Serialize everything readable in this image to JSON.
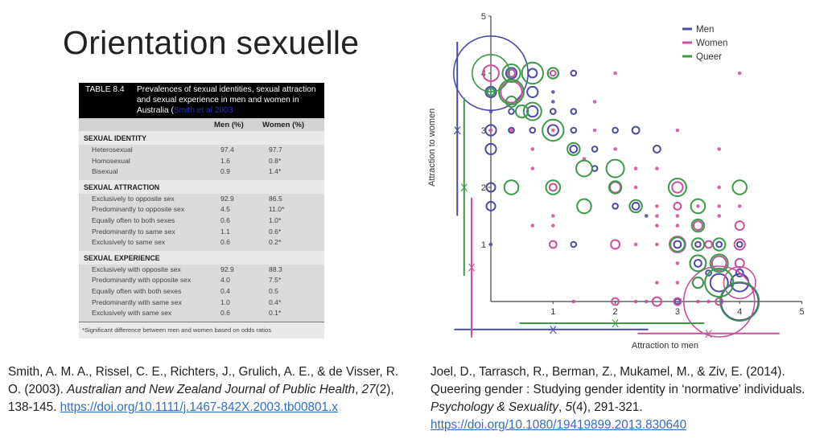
{
  "slide": {
    "title": "Orientation sexuelle"
  },
  "table": {
    "number": "TABLE 8.4",
    "caption": "Prevalences of sexual identities, sexual attraction and sexual experience in men and women in Australia (",
    "caption_source": "Smith et al 2003",
    "columns": [
      "Men (%)",
      "Women (%)"
    ],
    "sections": [
      {
        "title": "SEXUAL IDENTITY",
        "rows": [
          {
            "label": "Heterosexual",
            "men": "97.4",
            "women": "97.7"
          },
          {
            "label": "Homosexual",
            "men": "1.6",
            "women": "0.8*"
          },
          {
            "label": "Bisexual",
            "men": "0.9",
            "women": "1.4*"
          }
        ]
      },
      {
        "title": "SEXUAL ATTRACTION",
        "rows": [
          {
            "label": "Exclusively to opposite sex",
            "men": "92.9",
            "women": "86.5"
          },
          {
            "label": "Predominantly to opposite sex",
            "men": "4.5",
            "women": "11.0*"
          },
          {
            "label": "Equally often to both sexes",
            "men": "0.6",
            "women": "1.0*"
          },
          {
            "label": "Predominantly to same sex",
            "men": "1.1",
            "women": "0.6*"
          },
          {
            "label": "Exclusively to same sex",
            "men": "0.6",
            "women": "0.2*"
          }
        ]
      },
      {
        "title": "SEXUAL EXPERIENCE",
        "rows": [
          {
            "label": "Exclusively with opposite sex",
            "men": "92.9",
            "women": "88.3"
          },
          {
            "label": "Predominantly with opposite sex",
            "men": "4.0",
            "women": "7.5*"
          },
          {
            "label": "Equally often with both sexes",
            "men": "0.4",
            "women": "0.5"
          },
          {
            "label": "Predominantly with same sex",
            "men": "1.0",
            "women": "0.4*"
          },
          {
            "label": "Exclusively with same sex",
            "men": "0.6",
            "women": "0.1*"
          }
        ]
      }
    ],
    "footnote": "*Significant difference between men and women based on odds ratios"
  },
  "citations": {
    "left": {
      "text": "Smith, A. M. A., Rissel, C. E., Richters, J., Grulich, A. E., & de Visser, R. O. (2003). ",
      "journal": "Australian and New Zealand Journal of Public Health",
      "sep1": ", ",
      "volume": "27",
      "rest": "(2), 138-145. ",
      "link": "https://doi.org/10.1111/j.1467-842X.2003.tb00801.x"
    },
    "right": {
      "text": "Joel, D., Tarrasch, R., Berman, Z., Mukamel, M., & Ziv, E. (2014). Queering gender : Studying gender identity in ‘normative’ individuals. ",
      "journal": "Psychology & Sexuality",
      "sep1": ", ",
      "volume": "5",
      "rest": "(4), 291-321.",
      "link": "https://doi.org/10.1080/19419899.2013.830640"
    }
  },
  "chart_data": {
    "type": "scatter",
    "subtype": "bubble",
    "xlabel": "Attraction to men",
    "ylabel": "Attraction to women",
    "xlim": [
      0,
      5
    ],
    "ylim": [
      0,
      5
    ],
    "xticks": [
      "1",
      "2",
      "3",
      "4",
      "5"
    ],
    "yticks": [
      "1",
      "2",
      "3",
      "4",
      "5"
    ],
    "legend_position": "top-right",
    "series": [
      {
        "name": "Men",
        "color": "#4a4aa8",
        "points": [
          [
            0,
            4,
            21
          ],
          [
            0,
            3.67,
            3
          ],
          [
            0,
            3.33,
            1
          ],
          [
            0,
            3,
            3
          ],
          [
            0,
            2.67,
            3
          ],
          [
            0,
            2,
            2.5
          ],
          [
            0,
            1.67,
            2.5
          ],
          [
            0,
            1,
            1
          ],
          [
            0.33,
            4,
            3
          ],
          [
            0.67,
            4,
            2.5
          ],
          [
            1,
            4,
            3
          ],
          [
            1.33,
            4,
            1.5
          ],
          [
            0.67,
            3.67,
            3
          ],
          [
            1,
            3.67,
            1
          ],
          [
            1,
            3.5,
            1
          ],
          [
            0.33,
            3.33,
            1.5
          ],
          [
            0.67,
            3.33,
            3
          ],
          [
            1,
            3.33,
            1.5
          ],
          [
            1.33,
            3.33,
            1.5
          ],
          [
            0.33,
            3,
            1.5
          ],
          [
            0.67,
            3,
            1.5
          ],
          [
            1,
            3,
            3
          ],
          [
            1.33,
            3,
            1.5
          ],
          [
            2,
            3,
            1.5
          ],
          [
            2.33,
            3,
            2
          ],
          [
            1.33,
            2.67,
            2
          ],
          [
            1.67,
            2.67,
            1.5
          ],
          [
            2.67,
            2.67,
            2
          ],
          [
            1.67,
            2.33,
            1.5
          ],
          [
            2,
            1.67,
            1.5
          ],
          [
            2.33,
            1.67,
            2
          ],
          [
            2.5,
            1.5,
            1
          ],
          [
            1.33,
            1,
            1.5
          ],
          [
            3,
            1,
            2
          ],
          [
            3.33,
            1,
            1.5
          ],
          [
            3.67,
            1,
            1.5
          ],
          [
            4,
            1,
            1.5
          ],
          [
            3.33,
            0.67,
            2
          ],
          [
            3.5,
            0.5,
            1.5
          ],
          [
            4,
            0.5,
            2
          ],
          [
            3.67,
            0.33,
            5
          ],
          [
            4,
            0.33,
            5
          ],
          [
            4,
            0,
            10.5
          ],
          [
            3,
            0,
            1.5
          ]
        ],
        "range": {
          "y": {
            "from": 1.5,
            "to": 4.55,
            "mean": 3.0,
            "at": -0.54
          },
          "x": {
            "from": -0.59,
            "to": 2.53,
            "mean": 1.0,
            "at": -0.49
          }
        }
      },
      {
        "name": "Women",
        "color": "#c8509c",
        "points": [
          [
            0,
            4,
            4.5
          ],
          [
            0.33,
            4,
            2
          ],
          [
            1,
            4,
            1.5
          ],
          [
            2,
            4,
            1
          ],
          [
            4,
            4,
            1
          ],
          [
            0.33,
            3.67,
            6
          ],
          [
            1.67,
            3.5,
            1
          ],
          [
            0,
            3,
            1
          ],
          [
            0.33,
            3,
            1
          ],
          [
            1,
            3,
            1
          ],
          [
            1.67,
            3,
            1
          ],
          [
            3,
            3,
            1
          ],
          [
            0.67,
            2.67,
            1
          ],
          [
            2,
            2.67,
            1
          ],
          [
            3.67,
            2.67,
            1
          ],
          [
            1.5,
            2.5,
            1
          ],
          [
            0.67,
            2.33,
            1
          ],
          [
            2.33,
            2.33,
            1
          ],
          [
            2.67,
            2.33,
            1
          ],
          [
            1,
            2,
            2
          ],
          [
            2,
            2,
            3
          ],
          [
            2.33,
            2,
            1
          ],
          [
            3,
            2,
            3
          ],
          [
            3.67,
            2,
            1
          ],
          [
            2.67,
            1.67,
            1
          ],
          [
            3,
            1.67,
            2
          ],
          [
            3.33,
            1.67,
            1
          ],
          [
            3.67,
            1.67,
            1
          ],
          [
            4,
            1.67,
            1
          ],
          [
            1,
            1.5,
            1
          ],
          [
            2.67,
            1.5,
            1
          ],
          [
            3,
            1.5,
            1
          ],
          [
            3.67,
            1.5,
            1
          ],
          [
            0.67,
            1.33,
            1
          ],
          [
            1,
            1.33,
            1
          ],
          [
            2.67,
            1.33,
            1
          ],
          [
            3,
            1.33,
            1
          ],
          [
            3.33,
            1.33,
            2.5
          ],
          [
            4,
            1.33,
            2.5
          ],
          [
            1,
            1,
            2
          ],
          [
            2,
            1,
            2.5
          ],
          [
            2.33,
            1,
            1
          ],
          [
            2.67,
            1,
            1
          ],
          [
            3,
            1,
            4.5
          ],
          [
            3.5,
            1,
            2
          ],
          [
            4,
            1,
            3
          ],
          [
            3,
            0.67,
            1
          ],
          [
            3.33,
            0.67,
            4.5
          ],
          [
            3.67,
            0.67,
            4
          ],
          [
            4,
            0.67,
            2.5
          ],
          [
            2.67,
            0.33,
            1
          ],
          [
            3,
            0.33,
            1
          ],
          [
            3.33,
            0.33,
            3
          ],
          [
            1.33,
            0,
            1
          ],
          [
            2,
            0,
            2
          ],
          [
            2.33,
            0,
            1
          ],
          [
            2.5,
            0,
            1
          ],
          [
            2.67,
            0,
            2.5
          ],
          [
            3,
            0,
            2
          ],
          [
            3.33,
            0,
            1
          ],
          [
            3.5,
            0,
            1
          ],
          [
            3.67,
            0,
            2
          ],
          [
            4,
            0.33,
            9
          ],
          [
            3.67,
            0,
            20
          ]
        ],
        "range": {
          "y": {
            "from": -0.63,
            "to": 1.82,
            "mean": 0.6,
            "at": -0.31
          },
          "x": {
            "from": 2.36,
            "to": 4.64,
            "mean": 3.5,
            "at": -0.56
          }
        }
      },
      {
        "name": "Queer",
        "color": "#3a9a48",
        "points": [
          [
            0,
            4,
            10.5
          ],
          [
            0.33,
            4,
            5
          ],
          [
            0.67,
            4,
            6
          ],
          [
            1,
            4,
            3
          ],
          [
            0,
            3.67,
            2
          ],
          [
            0.33,
            3.67,
            7
          ],
          [
            0.33,
            3.5,
            3
          ],
          [
            0.5,
            3.33,
            3.5
          ],
          [
            0.67,
            3.33,
            5
          ],
          [
            1,
            3,
            6
          ],
          [
            1.33,
            2.67,
            3.5
          ],
          [
            1.5,
            2.33,
            4.5
          ],
          [
            2,
            2.33,
            5
          ],
          [
            0.33,
            2,
            4
          ],
          [
            1,
            2,
            4
          ],
          [
            2,
            2,
            3.5
          ],
          [
            3,
            2,
            5
          ],
          [
            4,
            2,
            4
          ],
          [
            1.5,
            1.67,
            4
          ],
          [
            2.33,
            1.67,
            3.5
          ],
          [
            3.33,
            1.67,
            4
          ],
          [
            3.33,
            1.33,
            3.5
          ],
          [
            3,
            1,
            4
          ],
          [
            3.33,
            1,
            3.5
          ],
          [
            3.67,
            1,
            3.5
          ],
          [
            3.33,
            0.67,
            4.5
          ],
          [
            3.67,
            0.67,
            5
          ],
          [
            3.33,
            0.33,
            3
          ],
          [
            3.67,
            0.33,
            8
          ],
          [
            4,
            0,
            11
          ]
        ],
        "range": {
          "y": {
            "from": 0.45,
            "to": 3.57,
            "mean": 2.0,
            "at": -0.43
          },
          "x": {
            "from": 0.46,
            "to": 3.43,
            "mean": 2.0,
            "at": -0.38
          }
        }
      }
    ],
    "mean_marker": "X"
  }
}
